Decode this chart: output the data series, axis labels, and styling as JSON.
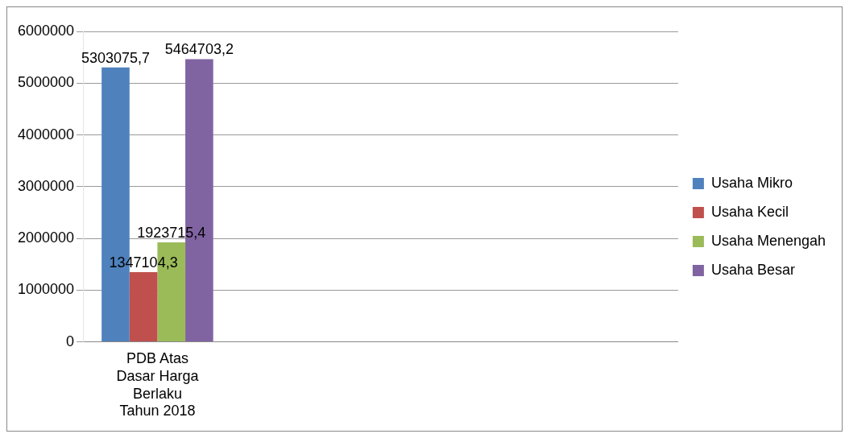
{
  "chart_data": {
    "type": "bar",
    "categories": [
      "PDB Atas Dasar Harga Berlaku Tahun 2018",
      null,
      null,
      null
    ],
    "series": [
      {
        "name": "Usaha Mikro",
        "color": "#4f81bd",
        "values": [
          5303075.7,
          null,
          null,
          null
        ],
        "value_labels": [
          "5303075,7",
          null,
          null,
          null
        ]
      },
      {
        "name": "Usaha Kecil",
        "color": "#c0504d",
        "values": [
          1347104.3,
          null,
          null,
          null
        ],
        "value_labels": [
          "1347104,3",
          null,
          null,
          null
        ]
      },
      {
        "name": "Usaha Menengah",
        "color": "#9bbb59",
        "values": [
          1923715.4,
          null,
          null,
          null
        ],
        "value_labels": [
          "1923715,4",
          null,
          null,
          null
        ]
      },
      {
        "name": "Usaha Besar",
        "color": "#8064a2",
        "values": [
          5464703.2,
          null,
          null,
          null
        ],
        "value_labels": [
          "5464703,2",
          null,
          null,
          null
        ]
      }
    ],
    "ylim": [
      0,
      6000000
    ],
    "yticks": [
      0,
      1000000,
      2000000,
      3000000,
      4000000,
      5000000,
      6000000
    ],
    "grid": "y",
    "legend": "right"
  }
}
